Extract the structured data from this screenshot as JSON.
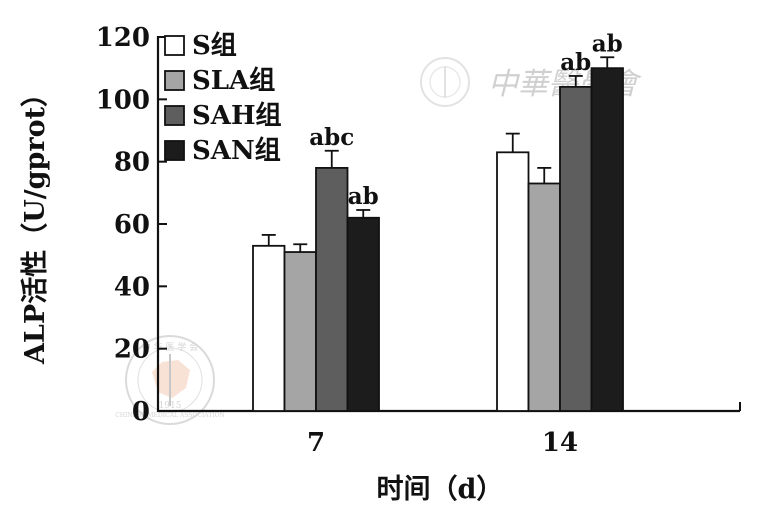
{
  "chart_data": {
    "type": "bar",
    "xlabel": "时间（d）",
    "ylabel": "ALP活性（U/gprot）",
    "ylim": [
      0,
      120
    ],
    "yticks": [
      0,
      20,
      40,
      60,
      80,
      100,
      120
    ],
    "categories": [
      "7",
      "14"
    ],
    "legend_position": "top-left",
    "series": [
      {
        "name": "S组",
        "color": "#ffffff",
        "values": [
          53,
          83
        ],
        "errors": [
          3.5,
          6
        ],
        "labels": [
          "",
          ""
        ]
      },
      {
        "name": "SLA组",
        "color": "#a5a5a5",
        "values": [
          51,
          73
        ],
        "errors": [
          2.5,
          5
        ],
        "labels": [
          "",
          ""
        ]
      },
      {
        "name": "SAH组",
        "color": "#5e5e5e",
        "values": [
          78,
          104
        ],
        "errors": [
          5.5,
          3.5
        ],
        "labels": [
          "abc",
          "ab"
        ]
      },
      {
        "name": "SAN组",
        "color": "#1c1c1c",
        "values": [
          62,
          110
        ],
        "errors": [
          2.5,
          3.5
        ],
        "labels": [
          "ab",
          "ab"
        ]
      }
    ]
  },
  "watermark": {
    "text": "中華醫學會",
    "seal_text": "中 华 医 学 会",
    "seal_sub": "CHINESE MEDICAL ASSOCIATION",
    "seal_year": "1915"
  }
}
